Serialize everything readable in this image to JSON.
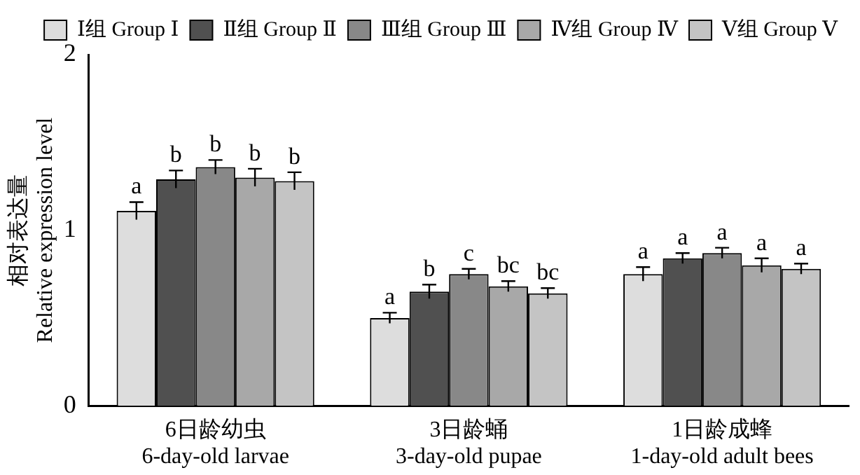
{
  "chart_data": {
    "type": "bar",
    "ylabel": "相对表达量\nRelative expression level",
    "categories": [
      "6日龄幼虫\n6-day-old larvae",
      "3日龄蛹\n3-day-old pupae",
      "1日龄成蜂\n1-day-old adult bees"
    ],
    "series": [
      {
        "name": "Ⅰ组 Group Ⅰ",
        "color": "#dddddd",
        "values": [
          1.11,
          0.5,
          0.75
        ],
        "errors": [
          0.05,
          0.03,
          0.04
        ],
        "value_labels": [
          "a",
          "a",
          "a"
        ]
      },
      {
        "name": "Ⅱ组 Group Ⅱ",
        "color": "#505050",
        "values": [
          1.29,
          0.65,
          0.84
        ],
        "errors": [
          0.05,
          0.04,
          0.03
        ],
        "value_labels": [
          "b",
          "b",
          "a"
        ]
      },
      {
        "name": "Ⅲ组 Group Ⅲ",
        "color": "#888888",
        "values": [
          1.36,
          0.75,
          0.87
        ],
        "errors": [
          0.04,
          0.03,
          0.03
        ],
        "value_labels": [
          "b",
          "c",
          "a"
        ]
      },
      {
        "name": "Ⅳ组 Group Ⅳ",
        "color": "#a8a8a8",
        "values": [
          1.3,
          0.68,
          0.8
        ],
        "errors": [
          0.05,
          0.03,
          0.04
        ],
        "value_labels": [
          "b",
          "bc",
          "a"
        ]
      },
      {
        "name": "Ⅴ组 Group Ⅴ",
        "color": "#c4c4c4",
        "values": [
          1.28,
          0.64,
          0.78
        ],
        "errors": [
          0.05,
          0.03,
          0.03
        ],
        "value_labels": [
          "b",
          "bc",
          "a"
        ]
      }
    ],
    "ylim": [
      0,
      2
    ],
    "yticks": [
      0,
      1,
      2
    ],
    "grid": false,
    "legend": "top right"
  }
}
